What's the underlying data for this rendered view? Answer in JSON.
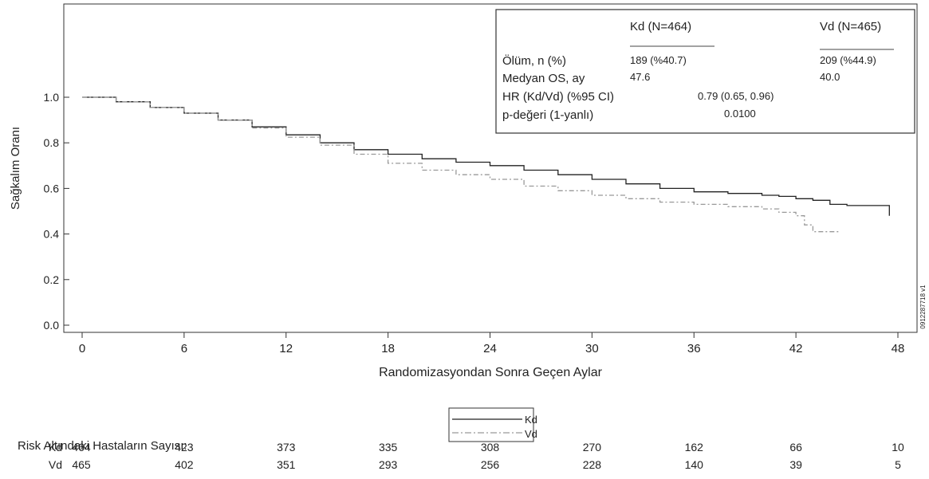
{
  "chart_data": {
    "type": "line",
    "title": "",
    "xlabel": "Randomizasyondan Sonra Geçen Aylar",
    "ylabel": "Sağkalım Oranı",
    "xlim": [
      0,
      48
    ],
    "ylim": [
      0,
      1.05
    ],
    "x_ticks": [
      0,
      6,
      12,
      18,
      24,
      30,
      36,
      42,
      48
    ],
    "y_ticks": [
      0.0,
      0.2,
      0.4,
      0.6,
      0.8,
      1.0
    ],
    "y_tick_labels": [
      "0.0",
      "0.2",
      "0.4",
      "0.6",
      "0.8",
      "1.0"
    ],
    "grid": false,
    "legend_position": "bottom-center",
    "series": [
      {
        "name": "Kd",
        "color": "#222222",
        "dash": "solid",
        "points": [
          [
            0,
            1.0
          ],
          [
            2,
            0.98
          ],
          [
            4,
            0.955
          ],
          [
            6,
            0.93
          ],
          [
            8,
            0.9
          ],
          [
            10,
            0.87
          ],
          [
            12,
            0.835
          ],
          [
            14,
            0.8
          ],
          [
            16,
            0.77
          ],
          [
            18,
            0.75
          ],
          [
            20,
            0.73
          ],
          [
            22,
            0.715
          ],
          [
            24,
            0.7
          ],
          [
            26,
            0.68
          ],
          [
            28,
            0.66
          ],
          [
            30,
            0.64
          ],
          [
            32,
            0.62
          ],
          [
            34,
            0.6
          ],
          [
            36,
            0.585
          ],
          [
            38,
            0.578
          ],
          [
            40,
            0.57
          ],
          [
            41,
            0.565
          ],
          [
            42,
            0.555
          ],
          [
            43,
            0.548
          ],
          [
            44,
            0.53
          ],
          [
            45,
            0.525
          ],
          [
            46,
            0.525
          ],
          [
            47.5,
            0.525
          ],
          [
            47.5,
            0.48
          ]
        ]
      },
      {
        "name": "Vd",
        "color": "#999999",
        "dash": "dashdot",
        "points": [
          [
            0,
            1.0
          ],
          [
            2,
            0.98
          ],
          [
            4,
            0.955
          ],
          [
            6,
            0.93
          ],
          [
            8,
            0.9
          ],
          [
            10,
            0.865
          ],
          [
            12,
            0.825
          ],
          [
            14,
            0.79
          ],
          [
            16,
            0.75
          ],
          [
            18,
            0.71
          ],
          [
            20,
            0.68
          ],
          [
            22,
            0.66
          ],
          [
            24,
            0.64
          ],
          [
            26,
            0.61
          ],
          [
            28,
            0.59
          ],
          [
            30,
            0.57
          ],
          [
            32,
            0.555
          ],
          [
            34,
            0.54
          ],
          [
            36,
            0.53
          ],
          [
            38,
            0.52
          ],
          [
            40,
            0.51
          ],
          [
            41,
            0.495
          ],
          [
            42,
            0.48
          ],
          [
            42.5,
            0.44
          ],
          [
            43,
            0.41
          ],
          [
            44,
            0.41
          ],
          [
            44.5,
            0.4
          ]
        ]
      }
    ],
    "annotation_box": {
      "col_headers": [
        "Kd (N=464)",
        "Vd (N=465)"
      ],
      "rows": [
        {
          "label": "Ölüm, n (%)",
          "kd": "189 (%40.7)",
          "vd": "209 (%44.9)"
        },
        {
          "label": "Medyan OS, ay",
          "kd": "47.6",
          "vd": "40.0"
        },
        {
          "label": "HR (Kd/Vd) (%95 CI)",
          "value": "0.79 (0.65, 0.96)"
        },
        {
          "label": "p-değeri (1-yanlı)",
          "value": "0.0100"
        }
      ]
    },
    "risk_table": {
      "title": "Risk Altındaki Hastaların Sayısı:",
      "rows": [
        {
          "name": "Kd",
          "values": [
            464,
            423,
            373,
            335,
            308,
            270,
            162,
            66,
            10
          ]
        },
        {
          "name": "Vd",
          "values": [
            465,
            402,
            351,
            293,
            256,
            228,
            140,
            39,
            5
          ]
        }
      ]
    },
    "watermark": "0912287718 v1"
  }
}
